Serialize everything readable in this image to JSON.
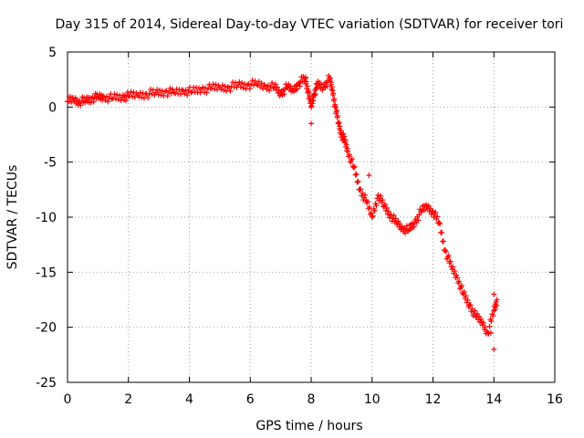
{
  "chart_data": {
    "type": "scatter",
    "title": "Day 315 of 2014, Sidereal Day-to-day VTEC variation (SDTVAR) for receiver tori",
    "xlabel": "GPS time / hours",
    "ylabel": "SDTVAR / TECUs",
    "xlim": [
      0,
      16
    ],
    "ylim": [
      -25,
      5
    ],
    "xticks": [
      "0",
      "2",
      "4",
      "6",
      "8",
      "10",
      "12",
      "14",
      "16"
    ],
    "yticks": [
      "5",
      "0",
      "-5",
      "-10",
      "-15",
      "-20",
      "-25"
    ],
    "grid": true,
    "marker": "+",
    "series": [
      {
        "name": "SDTVAR",
        "color": "#ff0000",
        "x": [
          0.0,
          0.2,
          0.4,
          0.6,
          0.8,
          1.0,
          1.2,
          1.5,
          1.8,
          2.0,
          2.3,
          2.6,
          2.9,
          3.2,
          3.5,
          3.8,
          4.1,
          4.4,
          4.7,
          5.0,
          5.3,
          5.6,
          5.9,
          6.2,
          6.5,
          6.8,
          7.0,
          7.2,
          7.4,
          7.6,
          7.8,
          7.9,
          8.0,
          8.1,
          8.2,
          8.4,
          8.6,
          8.7,
          8.8,
          8.9,
          9.0,
          9.1,
          9.2,
          9.4,
          9.6,
          9.8,
          10.0,
          10.2,
          10.4,
          10.6,
          10.8,
          11.0,
          11.2,
          11.4,
          11.6,
          11.8,
          12.0,
          12.2,
          12.4,
          12.6,
          12.8,
          13.0,
          13.2,
          13.4,
          13.6,
          13.8,
          14.0,
          14.1
        ],
        "values": [
          0.5,
          0.7,
          0.5,
          0.6,
          0.8,
          0.9,
          0.9,
          0.8,
          0.9,
          1.0,
          1.1,
          1.2,
          1.3,
          1.4,
          1.3,
          1.5,
          1.4,
          1.6,
          1.7,
          1.8,
          1.8,
          2.0,
          2.0,
          2.1,
          1.9,
          1.8,
          1.2,
          1.8,
          1.5,
          2.2,
          2.6,
          1.5,
          0.0,
          1.2,
          2.0,
          1.8,
          2.6,
          1.5,
          0.0,
          -1.5,
          -2.5,
          -3.0,
          -4.0,
          -5.5,
          -7.5,
          -8.5,
          -10.0,
          -8.0,
          -9.0,
          -9.8,
          -10.5,
          -11.0,
          -11.2,
          -10.5,
          -9.5,
          -9.0,
          -9.5,
          -10.5,
          -13.0,
          -14.5,
          -15.5,
          -17.0,
          -18.0,
          -19.0,
          -19.5,
          -20.5,
          -18.5,
          -17.5
        ]
      }
    ],
    "extra_points": [
      {
        "x": 8.0,
        "y": -1.5
      },
      {
        "x": 9.9,
        "y": -6.2
      },
      {
        "x": 14.0,
        "y": -22.0
      },
      {
        "x": 14.0,
        "y": -17.0
      },
      {
        "x": 13.9,
        "y": -20.5
      }
    ]
  }
}
